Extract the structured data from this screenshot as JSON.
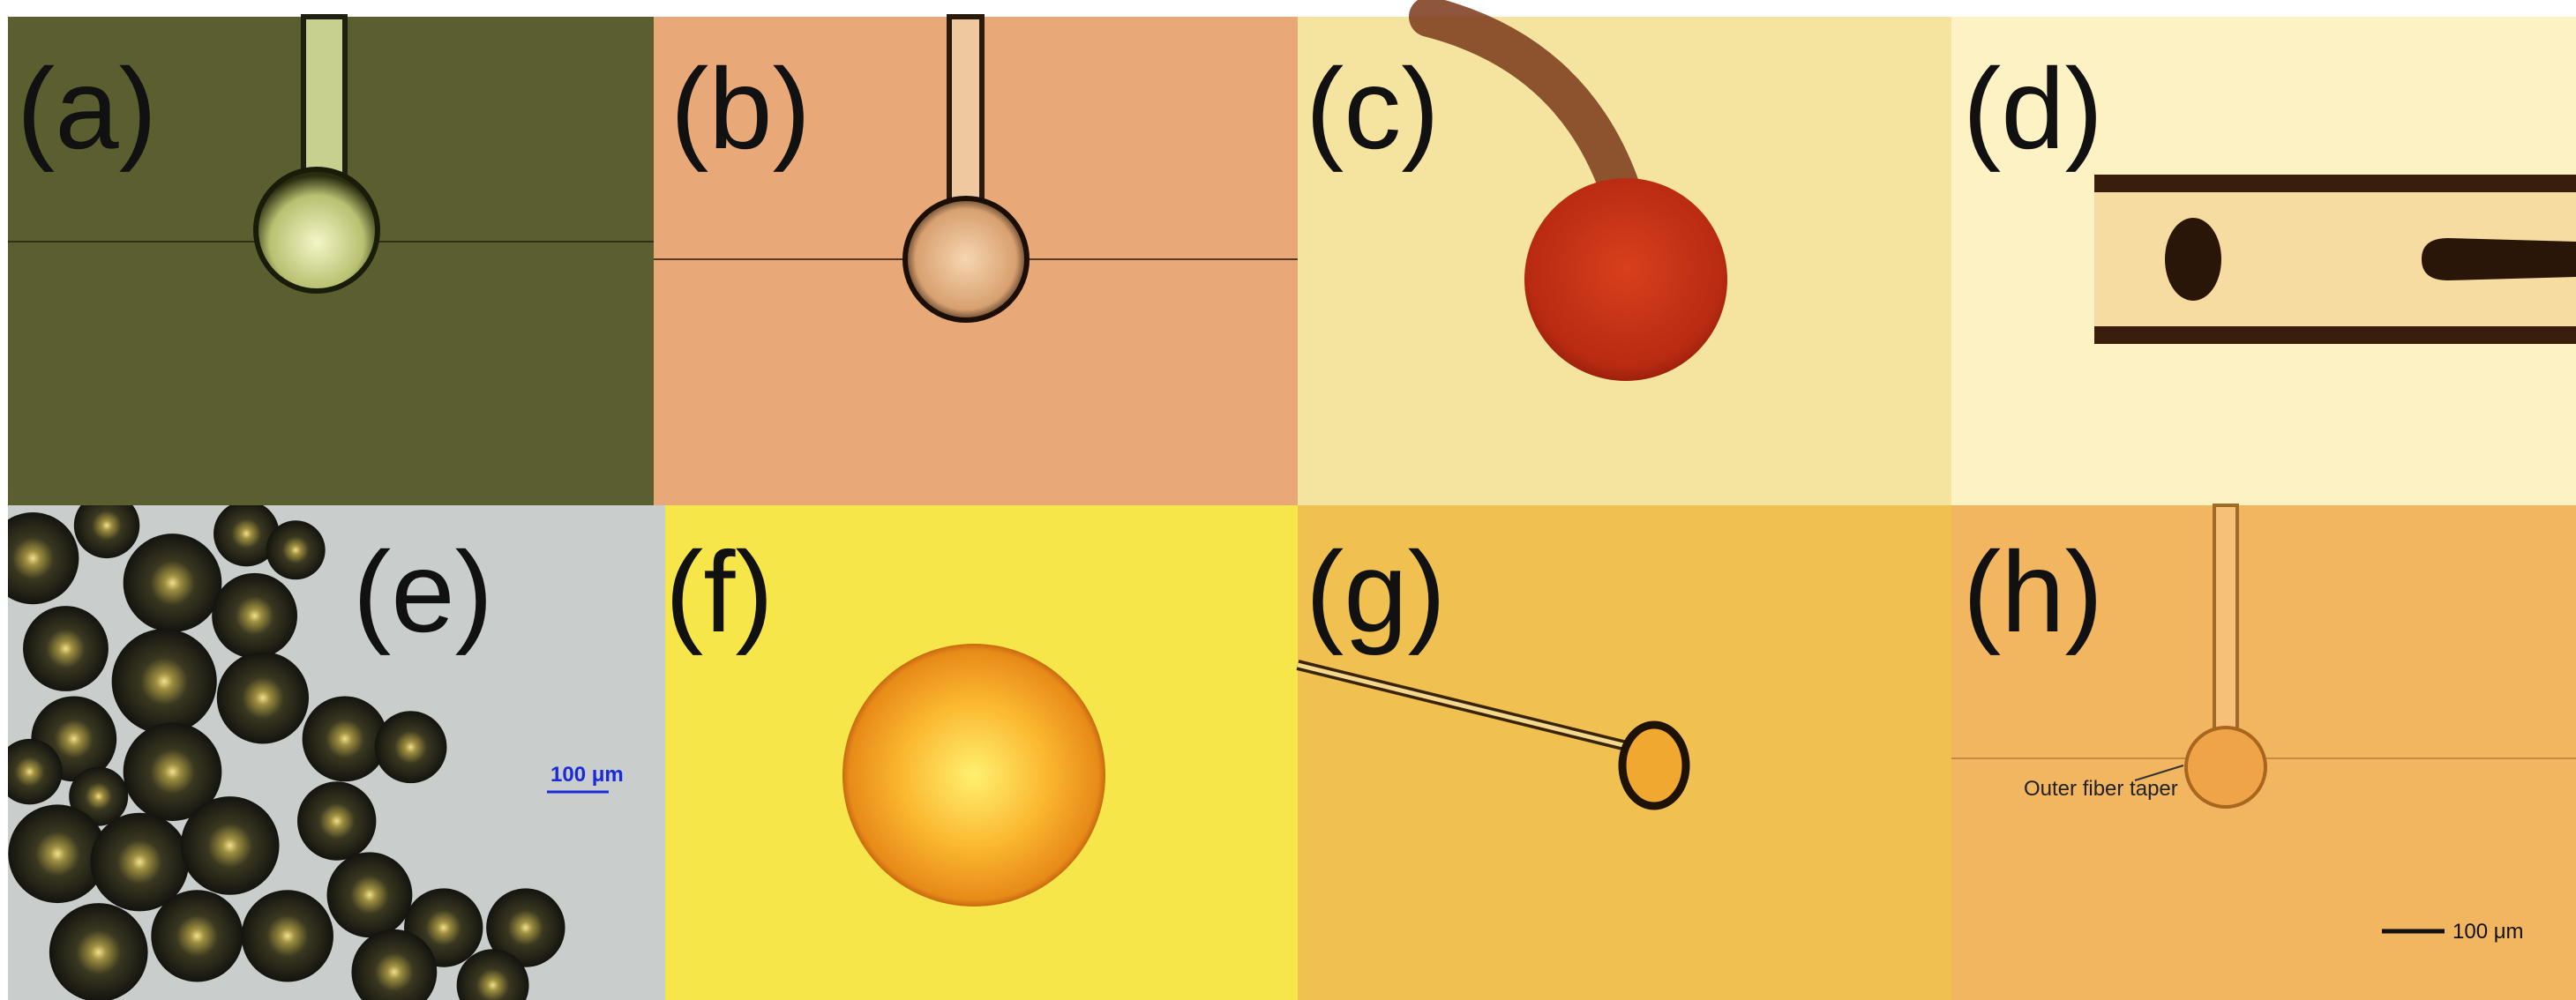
{
  "panels": [
    {
      "label": "(a)"
    },
    {
      "label": "(b)"
    },
    {
      "label": "(c)"
    },
    {
      "label": "(d)"
    },
    {
      "label": "(e)",
      "scale_bar": "100 μm"
    },
    {
      "label": "(f)"
    },
    {
      "label": "(g)"
    },
    {
      "label": "(h)",
      "annotation": "Outer fiber taper",
      "scale_bar": "100 μm"
    }
  ]
}
